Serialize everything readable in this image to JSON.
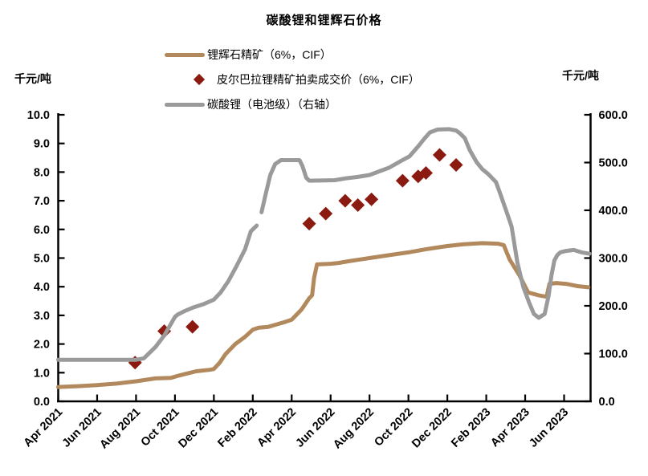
{
  "page": {
    "title": "碳酸锂和锂辉石价格"
  },
  "axes_units": {
    "left": "千元/吨",
    "right": "千元/吨"
  },
  "colors": {
    "spodumene": "#B2895C",
    "auction": "#8B1A10",
    "carbonate": "#9A9A9A",
    "axis": "#000000"
  },
  "legend": [
    {
      "label": "锂辉石精矿（6%，CIF）",
      "marker": "line",
      "color": "#B2895C"
    },
    {
      "label": "皮尔巴拉锂精矿拍卖成交价（6%，CIF）",
      "marker": "diamond",
      "color": "#8B1A10"
    },
    {
      "label": "碳酸锂（电池级）（右轴）",
      "marker": "line",
      "color": "#9A9A9A"
    }
  ],
  "chart_data": {
    "type": "line",
    "title": "碳酸锂和锂辉石价格",
    "x_unit": "months since Apr 2021",
    "x_range": [
      0,
      27.35
    ],
    "x_tick_positions": [
      0,
      2,
      4,
      6,
      8,
      10,
      12,
      14,
      16,
      18,
      20,
      22,
      24,
      26
    ],
    "x_tick_labels": [
      "Apr 2021",
      "Jun 2021",
      "Aug 2021",
      "Oct 2021",
      "Dec 2021",
      "Feb 2022",
      "Apr 2022",
      "Jun 2022",
      "Aug 2022",
      "Oct 2022",
      "Dec 2022",
      "Feb 2023",
      "Apr 2023",
      "Jun 2023"
    ],
    "left_axis": {
      "label": "千元/吨",
      "range": [
        0,
        10
      ],
      "tick_values": [
        0,
        1,
        2,
        3,
        4,
        5,
        6,
        7,
        8,
        9,
        10
      ],
      "tick_labels": [
        "0.0",
        "1.0",
        "2.0",
        "3.0",
        "4.0",
        "5.0",
        "6.0",
        "7.0",
        "8.0",
        "9.0",
        "10.0"
      ]
    },
    "right_axis": {
      "label": "千元/吨",
      "range": [
        0,
        600
      ],
      "tick_values": [
        0,
        100,
        200,
        300,
        400,
        500,
        600
      ],
      "tick_labels": [
        "0.0",
        "100.0",
        "200.0",
        "300.0",
        "400.0",
        "500.0",
        "600.0"
      ]
    },
    "grid": false,
    "legend_position": "top-left-inside",
    "series": [
      {
        "name": "锂辉石精矿（6%，CIF）",
        "type": "line",
        "axis": "left",
        "color": "#B2895C",
        "stroke_width": 5,
        "points": [
          [
            0,
            0.5
          ],
          [
            1,
            0.53
          ],
          [
            2,
            0.57
          ],
          [
            3,
            0.62
          ],
          [
            4,
            0.7
          ],
          [
            5,
            0.8
          ],
          [
            5.8,
            0.82
          ],
          [
            6.2,
            0.9
          ],
          [
            6.6,
            0.97
          ],
          [
            7.1,
            1.05
          ],
          [
            7.8,
            1.1
          ],
          [
            8.0,
            1.13
          ],
          [
            8.3,
            1.35
          ],
          [
            8.6,
            1.65
          ],
          [
            9.1,
            2.0
          ],
          [
            9.6,
            2.25
          ],
          [
            10.0,
            2.5
          ],
          [
            10.3,
            2.57
          ],
          [
            10.8,
            2.6
          ],
          [
            11.3,
            2.7
          ],
          [
            11.7,
            2.78
          ],
          [
            12.0,
            2.85
          ],
          [
            12.5,
            3.2
          ],
          [
            12.9,
            3.6
          ],
          [
            13.05,
            3.7
          ],
          [
            13.15,
            4.3
          ],
          [
            13.3,
            4.78
          ],
          [
            14.0,
            4.8
          ],
          [
            14.4,
            4.83
          ],
          [
            15.0,
            4.9
          ],
          [
            15.5,
            4.95
          ],
          [
            16.0,
            5.0
          ],
          [
            17.0,
            5.1
          ],
          [
            18.0,
            5.2
          ],
          [
            19.0,
            5.32
          ],
          [
            20.0,
            5.42
          ],
          [
            20.8,
            5.48
          ],
          [
            21.8,
            5.52
          ],
          [
            22.6,
            5.5
          ],
          [
            22.9,
            5.45
          ],
          [
            23.05,
            5.2
          ],
          [
            23.2,
            4.95
          ],
          [
            23.7,
            4.4
          ],
          [
            24.15,
            3.8
          ],
          [
            24.7,
            3.7
          ],
          [
            25.1,
            3.65
          ],
          [
            25.25,
            4.1
          ],
          [
            25.6,
            4.13
          ],
          [
            26.1,
            4.1
          ],
          [
            26.7,
            4.02
          ],
          [
            27.25,
            3.98
          ]
        ]
      },
      {
        "name": "皮尔巴拉锂精矿拍卖成交价（6%，CIF）",
        "type": "scatter",
        "marker": "diamond",
        "axis": "left",
        "color": "#8B1A10",
        "marker_half_diagonal": 8.5,
        "points": [
          [
            3.95,
            1.35
          ],
          [
            5.45,
            2.45
          ],
          [
            6.9,
            2.6
          ],
          [
            12.9,
            6.2
          ],
          [
            13.75,
            6.55
          ],
          [
            14.75,
            7.0
          ],
          [
            15.4,
            6.85
          ],
          [
            16.1,
            7.05
          ],
          [
            17.7,
            7.7
          ],
          [
            18.5,
            7.85
          ],
          [
            18.9,
            7.97
          ],
          [
            19.6,
            8.6
          ],
          [
            20.45,
            8.25
          ]
        ]
      },
      {
        "name": "碳酸锂（电池级）（右轴）",
        "type": "line",
        "axis": "right",
        "color": "#9A9A9A",
        "stroke_width": 5,
        "segments": [
          [
            [
              0,
              87
            ],
            [
              3.5,
              87
            ],
            [
              4.0,
              87
            ],
            [
              4.4,
              90
            ],
            [
              5.0,
              114
            ],
            [
              5.45,
              138
            ],
            [
              6.0,
              177
            ],
            [
              6.15,
              182
            ],
            [
              6.5,
              189
            ],
            [
              6.9,
              196
            ],
            [
              7.5,
              204
            ],
            [
              8.0,
              213
            ],
            [
              8.35,
              228
            ],
            [
              8.75,
              252
            ],
            [
              9.15,
              282
            ],
            [
              9.6,
              318
            ],
            [
              9.9,
              356
            ],
            [
              10.2,
              368
            ]
          ],
          [
            [
              10.45,
              396
            ],
            [
              10.65,
              432
            ],
            [
              10.9,
              474
            ],
            [
              11.15,
              497
            ],
            [
              11.45,
              505
            ],
            [
              12.4,
              505
            ],
            [
              12.55,
              493
            ],
            [
              12.75,
              468
            ],
            [
              12.9,
              462
            ],
            [
              14.2,
              463
            ],
            [
              14.8,
              467
            ],
            [
              15.4,
              470
            ],
            [
              16.0,
              474
            ],
            [
              16.4,
              480
            ],
            [
              17.0,
              489
            ],
            [
              17.65,
              504
            ],
            [
              18.05,
              513
            ],
            [
              18.5,
              534
            ],
            [
              18.8,
              549
            ],
            [
              19.1,
              563
            ],
            [
              19.5,
              569
            ],
            [
              20.1,
              570
            ],
            [
              20.45,
              567
            ],
            [
              20.65,
              561
            ],
            [
              20.9,
              551
            ],
            [
              21.15,
              526
            ],
            [
              21.5,
              501
            ],
            [
              21.8,
              486
            ],
            [
              22.1,
              476
            ],
            [
              22.5,
              459
            ],
            [
              22.7,
              437
            ],
            [
              23.0,
              402
            ],
            [
              23.3,
              366
            ],
            [
              23.6,
              291
            ],
            [
              23.9,
              240
            ],
            [
              24.2,
              207
            ],
            [
              24.45,
              183
            ],
            [
              24.7,
              175
            ],
            [
              25.0,
              183
            ],
            [
              25.2,
              220
            ],
            [
              25.35,
              264
            ],
            [
              25.5,
              295
            ],
            [
              25.65,
              306
            ],
            [
              25.8,
              312
            ],
            [
              26.1,
              315
            ],
            [
              26.5,
              317
            ],
            [
              26.9,
              312
            ],
            [
              27.3,
              309
            ]
          ]
        ]
      }
    ]
  }
}
